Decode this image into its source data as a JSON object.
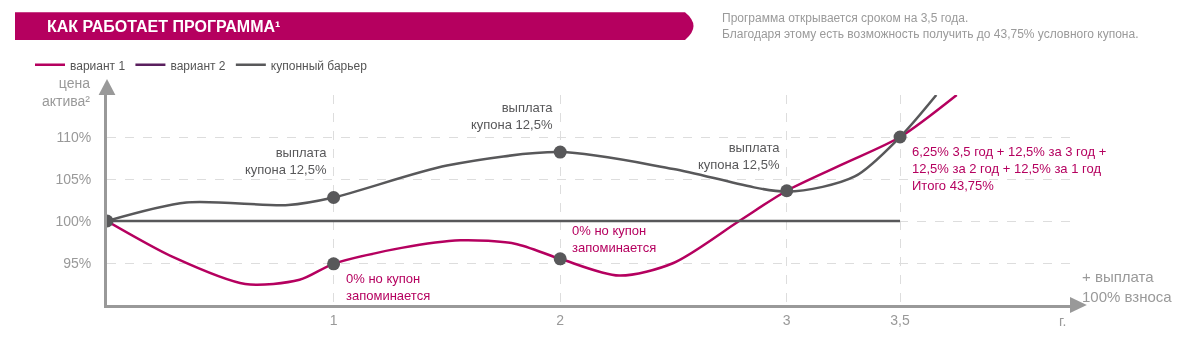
{
  "chart_data": {
    "type": "line",
    "title": "КАК РАБОТАЕТ ПРОГРАММА¹",
    "subtitle": "Программа открывается сроком на 3,5 года.\nБлагодаря этому есть возможность получить до 43,75% условного купона.",
    "ylabel": "цена актива²",
    "xlabel": "г.",
    "xlim": [
      0,
      4.25
    ],
    "xticks": [
      1,
      2,
      3,
      {
        "value": 3.5,
        "label": "3,5"
      }
    ],
    "ylim": [
      90,
      115
    ],
    "yticks": [
      {
        "value": 95,
        "label": "95%"
      },
      {
        "value": 100,
        "label": "100%"
      },
      {
        "value": 105,
        "label": "105%"
      },
      {
        "value": 110,
        "label": "110%"
      }
    ],
    "grid": true,
    "legend": "top left",
    "line_style": "solid",
    "series": [
      {
        "name": "вариант 1",
        "color": "#b5005f",
        "x": [
          0,
          0.3,
          0.61,
          0.85,
          1,
          1.3,
          1.56,
          1.8,
          2,
          2.26,
          2.5,
          2.79,
          3,
          3.25,
          3.5,
          3.75
        ],
        "values": [
          100,
          95.6,
          92.5,
          93,
          94.9,
          96.8,
          97.7,
          97.3,
          95.5,
          93.5,
          95,
          100,
          103.6,
          106.8,
          110,
          115
        ]
      },
      {
        "name": "вариант 2",
        "color": "#5a1f5e",
        "values": [
          null
        ]
      },
      {
        "name": "купонный барьер",
        "color": "#58585a",
        "x": [
          0,
          0.35,
          0.8,
          1,
          1.5,
          2,
          2.5,
          3,
          3.3,
          3.5,
          3.66
        ],
        "values": [
          100,
          102.2,
          101.9,
          102.8,
          106.6,
          108.2,
          106.2,
          103.5,
          105.3,
          110,
          115
        ]
      },
      {
        "color": "#58585a",
        "x": [
          0,
          3.5
        ],
        "values": [
          100,
          100
        ]
      },
      {
        "type": "scatter",
        "color": "#58585a",
        "marker": "circle",
        "x": [
          0,
          1,
          1,
          2,
          2,
          3,
          3.5
        ],
        "values": [
          100,
          94.9,
          102.8,
          95.5,
          108.2,
          103.6,
          110
        ]
      }
    ],
    "annotations": [
      {
        "text": "выплата\nкупона 12,5%",
        "x": 1,
        "y": 102.8
      },
      {
        "text": "выплата\nкупона 12,5%",
        "x": 2,
        "y": 108.2
      },
      {
        "text": "выплата\nкупона 12,5%",
        "x": 3,
        "y": 103.5
      },
      {
        "text": "0% но купон\nзапоминается",
        "x": 1,
        "y": 94.9
      },
      {
        "text": "0% но купон\nзапоминается",
        "x": 2,
        "y": 95.5
      },
      {
        "text": "6,25% 3,5 год + 12,5% за 3 год +\n12,5% за 2 год + 12,5% за 1 год\nИтого 43,75%",
        "x": 3.5,
        "y": 110
      },
      "+ выплата\n100% взноса"
    ]
  }
}
